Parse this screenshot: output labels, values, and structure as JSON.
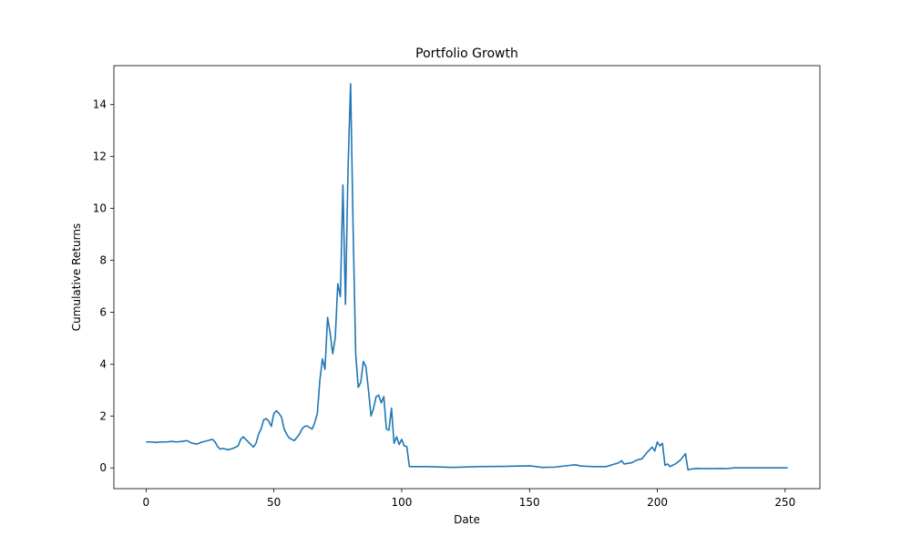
{
  "chart_data": {
    "type": "line",
    "title": "Portfolio Growth",
    "xlabel": "Date",
    "ylabel": "Cumulative Returns",
    "xlim": [
      -12.6,
      263.6
    ],
    "ylim": [
      -0.8,
      15.5
    ],
    "xticks": [
      0,
      50,
      100,
      150,
      200,
      250
    ],
    "yticks": [
      0,
      2,
      4,
      6,
      8,
      10,
      12,
      14
    ],
    "grid": false,
    "legend": "none",
    "series": [
      {
        "color": "#1f77b4",
        "x": [
          0,
          2,
          4,
          6,
          8,
          10,
          12,
          14,
          16,
          18,
          20,
          22,
          24,
          26,
          27,
          28,
          29,
          30,
          32,
          34,
          36,
          37,
          38,
          40,
          42,
          43,
          44,
          45,
          46,
          47,
          48,
          49,
          50,
          51,
          52,
          53,
          54,
          55,
          56,
          57,
          58,
          60,
          61,
          62,
          63,
          64,
          65,
          66,
          67,
          68,
          69,
          70,
          71,
          72,
          73,
          74,
          75,
          76,
          77,
          78,
          79,
          80,
          81,
          82,
          83,
          84,
          85,
          86,
          87,
          88,
          89,
          90,
          91,
          92,
          93,
          94,
          95,
          96,
          97,
          98,
          99,
          100,
          101,
          102,
          103,
          110,
          120,
          130,
          140,
          150,
          155,
          160,
          166,
          168,
          170,
          175,
          180,
          185,
          186,
          187,
          190,
          192,
          194,
          196,
          197,
          198,
          199,
          200,
          201,
          202,
          203,
          204,
          205,
          207,
          209,
          211,
          212,
          213,
          215,
          220,
          225,
          227,
          230,
          240,
          251
        ],
        "y": [
          1.0,
          1.0,
          0.98,
          1.0,
          1.0,
          1.02,
          1.0,
          1.02,
          1.05,
          0.95,
          0.92,
          1.0,
          1.05,
          1.1,
          1.0,
          0.82,
          0.72,
          0.75,
          0.7,
          0.75,
          0.85,
          1.1,
          1.2,
          1.0,
          0.8,
          0.95,
          1.3,
          1.5,
          1.85,
          1.9,
          1.8,
          1.6,
          2.1,
          2.2,
          2.1,
          1.95,
          1.5,
          1.3,
          1.15,
          1.1,
          1.05,
          1.3,
          1.5,
          1.6,
          1.62,
          1.55,
          1.5,
          1.75,
          2.1,
          3.4,
          4.2,
          3.8,
          5.8,
          5.2,
          4.4,
          5.0,
          7.1,
          6.6,
          10.9,
          6.3,
          11.5,
          14.8,
          9.2,
          4.4,
          3.1,
          3.3,
          4.1,
          3.9,
          3.0,
          2.0,
          2.3,
          2.75,
          2.8,
          2.5,
          2.75,
          1.5,
          1.45,
          2.3,
          0.95,
          1.2,
          0.9,
          1.1,
          0.85,
          0.82,
          0.05,
          0.05,
          0.02,
          0.05,
          0.06,
          0.08,
          0.02,
          0.03,
          0.1,
          0.12,
          0.07,
          0.05,
          0.05,
          0.2,
          0.28,
          0.15,
          0.2,
          0.3,
          0.35,
          0.6,
          0.7,
          0.8,
          0.65,
          1.0,
          0.85,
          0.95,
          0.1,
          0.15,
          0.05,
          0.15,
          0.3,
          0.55,
          -0.08,
          -0.05,
          -0.02,
          -0.03,
          -0.02,
          -0.03,
          0.0,
          0.0,
          0.0
        ]
      }
    ]
  }
}
